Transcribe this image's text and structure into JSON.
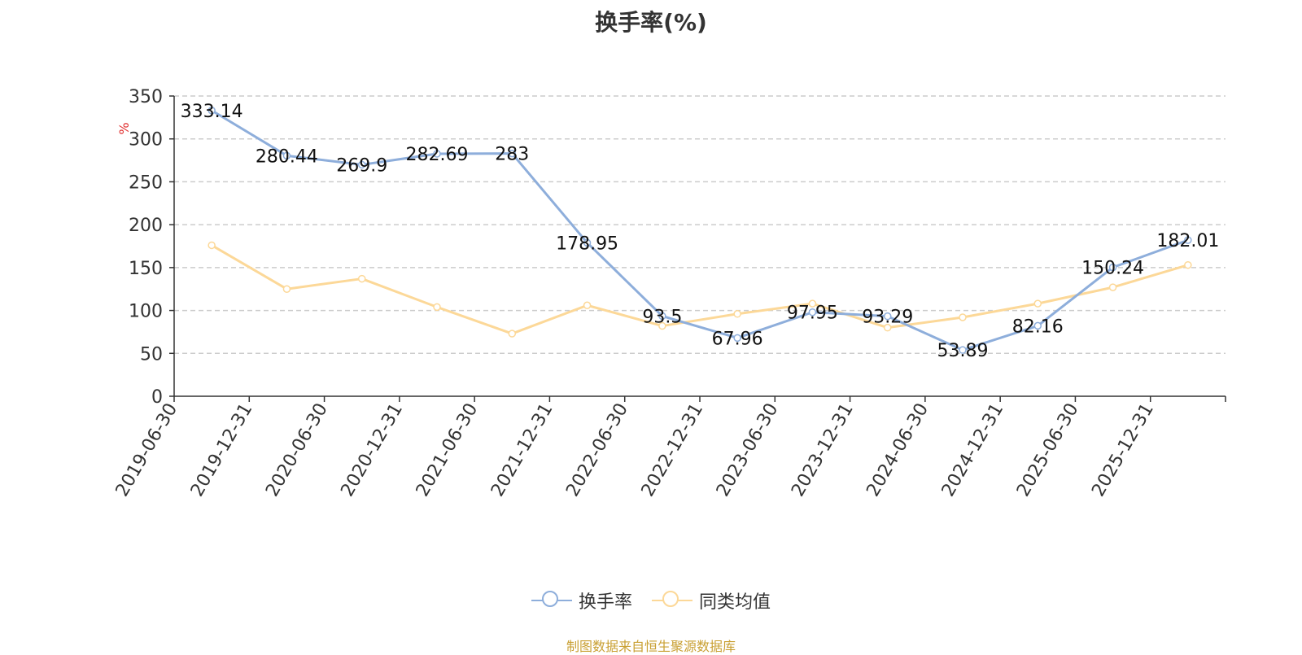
{
  "chart_data": {
    "type": "line",
    "title": "换手率(%)",
    "ylabel": "%",
    "ylim": [
      0,
      350
    ],
    "yticks": [
      0,
      50,
      100,
      150,
      200,
      250,
      300,
      350
    ],
    "grid": true,
    "legend_position": "bottom",
    "categories": [
      "2019-06-30",
      "2019-12-31",
      "2020-06-30",
      "2020-12-31",
      "2021-06-30",
      "2021-12-31",
      "2022-06-30",
      "2022-12-31",
      "2023-06-30",
      "2023-12-31",
      "2024-06-30",
      "2024-12-31",
      "2025-06-30",
      "2025-12-31"
    ],
    "series": [
      {
        "name": "换手率",
        "color": "#8eaedb",
        "show_labels": true,
        "values": [
          333.14,
          280.44,
          269.9,
          282.69,
          283,
          178.95,
          93.5,
          67.96,
          97.95,
          93.29,
          53.89,
          82.16,
          150.24,
          182.01
        ]
      },
      {
        "name": "同类均值",
        "color": "#fcd898",
        "show_labels": false,
        "values": [
          176,
          125,
          137,
          104,
          73,
          106,
          82,
          96,
          108,
          80,
          92,
          108,
          127,
          153
        ]
      }
    ]
  },
  "source_text": "制图数据来自恒生聚源数据库"
}
